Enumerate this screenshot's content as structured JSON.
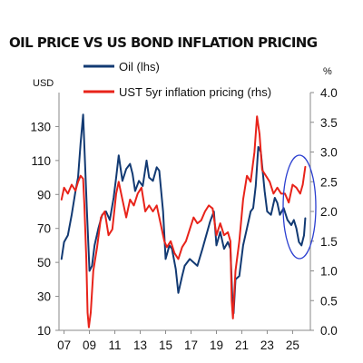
{
  "chart_data": {
    "type": "line",
    "title": "OIL PRICE VS US BOND INFLATION PRICING",
    "y_left_unit": "USD",
    "y_right_unit": "%",
    "x_ticks": [
      "07",
      "09",
      "11",
      "13",
      "15",
      "17",
      "19",
      "21",
      "23",
      "25"
    ],
    "x_range": [
      2006.6,
      2026.4
    ],
    "y_left": {
      "ticks": [
        "10",
        "30",
        "50",
        "70",
        "90",
        "110",
        "130"
      ],
      "range": [
        10,
        150
      ]
    },
    "y_right": {
      "ticks": [
        "0.0",
        "0.5",
        "1.0",
        "1.5",
        "2.0",
        "2.5",
        "3.0",
        "3.5",
        "4.0"
      ],
      "range": [
        0.0,
        4.0
      ]
    },
    "grid": false,
    "legend_position": "top",
    "annotation": "ellipse around latest values",
    "colors": {
      "oil": "#123a73",
      "inflation": "#e8231a",
      "annotation": "#2b3fd0"
    },
    "series": [
      {
        "name": "Oil (lhs)",
        "axis": "left",
        "color": "#123a73",
        "x": [
          2006.8,
          2007.0,
          2007.3,
          2007.6,
          2007.9,
          2008.1,
          2008.3,
          2008.5,
          2008.6,
          2008.8,
          2009.0,
          2009.2,
          2009.4,
          2009.7,
          2010.0,
          2010.3,
          2010.6,
          2010.9,
          2011.1,
          2011.3,
          2011.6,
          2011.9,
          2012.2,
          2012.4,
          2012.6,
          2012.9,
          2013.2,
          2013.5,
          2013.7,
          2014.0,
          2014.3,
          2014.5,
          2014.8,
          2015.0,
          2015.3,
          2015.5,
          2015.8,
          2016.0,
          2016.3,
          2016.5,
          2016.9,
          2017.2,
          2017.5,
          2017.9,
          2018.2,
          2018.5,
          2018.8,
          2019.0,
          2019.3,
          2019.6,
          2019.9,
          2020.1,
          2020.25,
          2020.35,
          2020.5,
          2020.8,
          2021.1,
          2021.4,
          2021.7,
          2021.9,
          2022.1,
          2022.3,
          2022.5,
          2022.8,
          2023.0,
          2023.3,
          2023.6,
          2023.8,
          2024.0,
          2024.3,
          2024.6,
          2024.9,
          2025.1,
          2025.3,
          2025.5,
          2025.7,
          2025.9,
          2026.0
        ],
        "values": [
          52,
          62,
          66,
          78,
          92,
          100,
          120,
          137,
          118,
          80,
          45,
          48,
          60,
          70,
          78,
          80,
          75,
          88,
          100,
          113,
          98,
          105,
          108,
          102,
          92,
          98,
          95,
          110,
          100,
          98,
          106,
          104,
          80,
          52,
          60,
          58,
          46,
          32,
          42,
          48,
          52,
          50,
          48,
          58,
          66,
          74,
          80,
          60,
          68,
          58,
          62,
          58,
          30,
          20,
          40,
          42,
          60,
          70,
          80,
          82,
          95,
          118,
          115,
          92,
          80,
          78,
          88,
          85,
          78,
          82,
          75,
          72,
          75,
          70,
          62,
          60,
          66,
          76
        ]
      },
      {
        "name": "UST 5yr inflation pricing (rhs)",
        "axis": "right",
        "color": "#e8231a",
        "x": [
          2006.8,
          2007.0,
          2007.3,
          2007.6,
          2007.9,
          2008.1,
          2008.3,
          2008.5,
          2008.6,
          2008.75,
          2008.85,
          2008.95,
          2009.1,
          2009.3,
          2009.6,
          2009.9,
          2010.2,
          2010.5,
          2010.8,
          2011.1,
          2011.3,
          2011.6,
          2011.9,
          2012.2,
          2012.5,
          2012.8,
          2013.1,
          2013.4,
          2013.7,
          2014.0,
          2014.3,
          2014.6,
          2014.9,
          2015.1,
          2015.4,
          2015.7,
          2016.0,
          2016.3,
          2016.6,
          2016.9,
          2017.2,
          2017.5,
          2017.8,
          2018.1,
          2018.4,
          2018.7,
          2019.0,
          2019.3,
          2019.6,
          2019.9,
          2020.1,
          2020.2,
          2020.3,
          2020.5,
          2020.8,
          2021.1,
          2021.4,
          2021.7,
          2022.0,
          2022.2,
          2022.4,
          2022.6,
          2022.9,
          2023.2,
          2023.5,
          2023.8,
          2024.1,
          2024.4,
          2024.7,
          2025.0,
          2025.3,
          2025.6,
          2025.8,
          2026.0
        ],
        "values": [
          2.2,
          2.4,
          2.3,
          2.45,
          2.35,
          2.5,
          2.6,
          2.55,
          2.1,
          1.2,
          0.3,
          0.05,
          0.3,
          1.0,
          1.4,
          1.9,
          2.0,
          1.6,
          1.7,
          2.3,
          2.5,
          2.2,
          1.9,
          2.2,
          2.1,
          2.3,
          2.4,
          2.0,
          2.1,
          2.0,
          2.1,
          1.8,
          1.5,
          1.4,
          1.5,
          1.3,
          1.2,
          1.4,
          1.5,
          1.7,
          1.9,
          1.8,
          1.85,
          2.0,
          2.1,
          2.05,
          1.6,
          1.8,
          1.6,
          1.65,
          1.5,
          0.5,
          0.2,
          1.0,
          1.5,
          2.2,
          2.6,
          2.5,
          3.0,
          3.6,
          3.3,
          2.7,
          2.6,
          2.5,
          2.3,
          2.4,
          2.3,
          2.3,
          2.15,
          2.45,
          2.4,
          2.3,
          2.45,
          2.75
        ]
      }
    ]
  }
}
